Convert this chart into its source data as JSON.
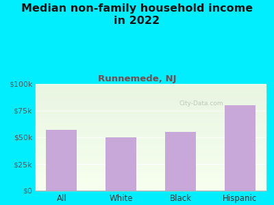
{
  "title": "Median non-family household income\nin 2022",
  "subtitle": "Runnemede, NJ",
  "categories": [
    "All",
    "White",
    "Black",
    "Hispanic"
  ],
  "values": [
    57000,
    50000,
    55000,
    80000
  ],
  "bar_color": "#c8a8d8",
  "title_fontsize": 11.5,
  "subtitle_fontsize": 9.5,
  "subtitle_color": "#7b4a4a",
  "title_color": "#111111",
  "bg_color": "#00eeff",
  "ylim": [
    0,
    100000
  ],
  "yticks": [
    0,
    25000,
    50000,
    75000,
    100000
  ],
  "ytick_labels": [
    "$0",
    "$25k",
    "$50k",
    "$75k",
    "$100k"
  ],
  "watermark": "City-Data.com"
}
